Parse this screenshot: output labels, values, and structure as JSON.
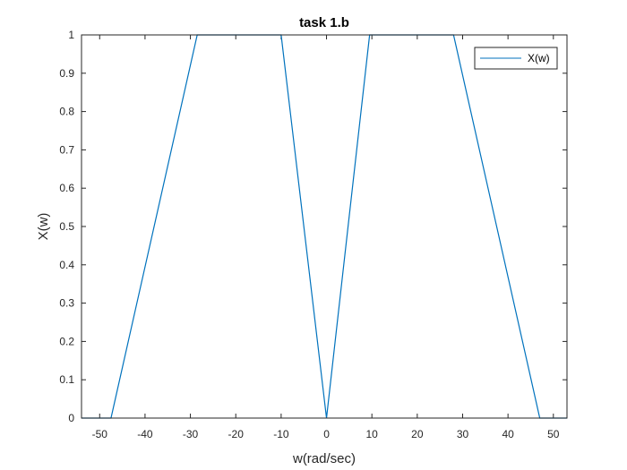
{
  "chart_data": {
    "type": "line",
    "title": "task 1.b",
    "xlabel": "w(rad/sec)",
    "ylabel": "X(w)",
    "xlim": [
      -54,
      53
    ],
    "ylim": [
      0,
      1
    ],
    "xticks": [
      -50,
      -40,
      -30,
      -20,
      -10,
      0,
      10,
      20,
      30,
      40,
      50
    ],
    "yticks": [
      0,
      0.1,
      0.2,
      0.3,
      0.4,
      0.5,
      0.6,
      0.7,
      0.8,
      0.9,
      1
    ],
    "grid": false,
    "legend": {
      "position": "top-right",
      "entries": [
        "X(w)"
      ]
    },
    "series": [
      {
        "name": "X(w)",
        "color": "#0072bd",
        "x": [
          -54,
          -47.5,
          -28.5,
          -10,
          0,
          9.5,
          28,
          47,
          53
        ],
        "y": [
          0,
          0,
          1,
          1,
          0,
          1,
          1,
          0,
          0
        ]
      }
    ]
  }
}
